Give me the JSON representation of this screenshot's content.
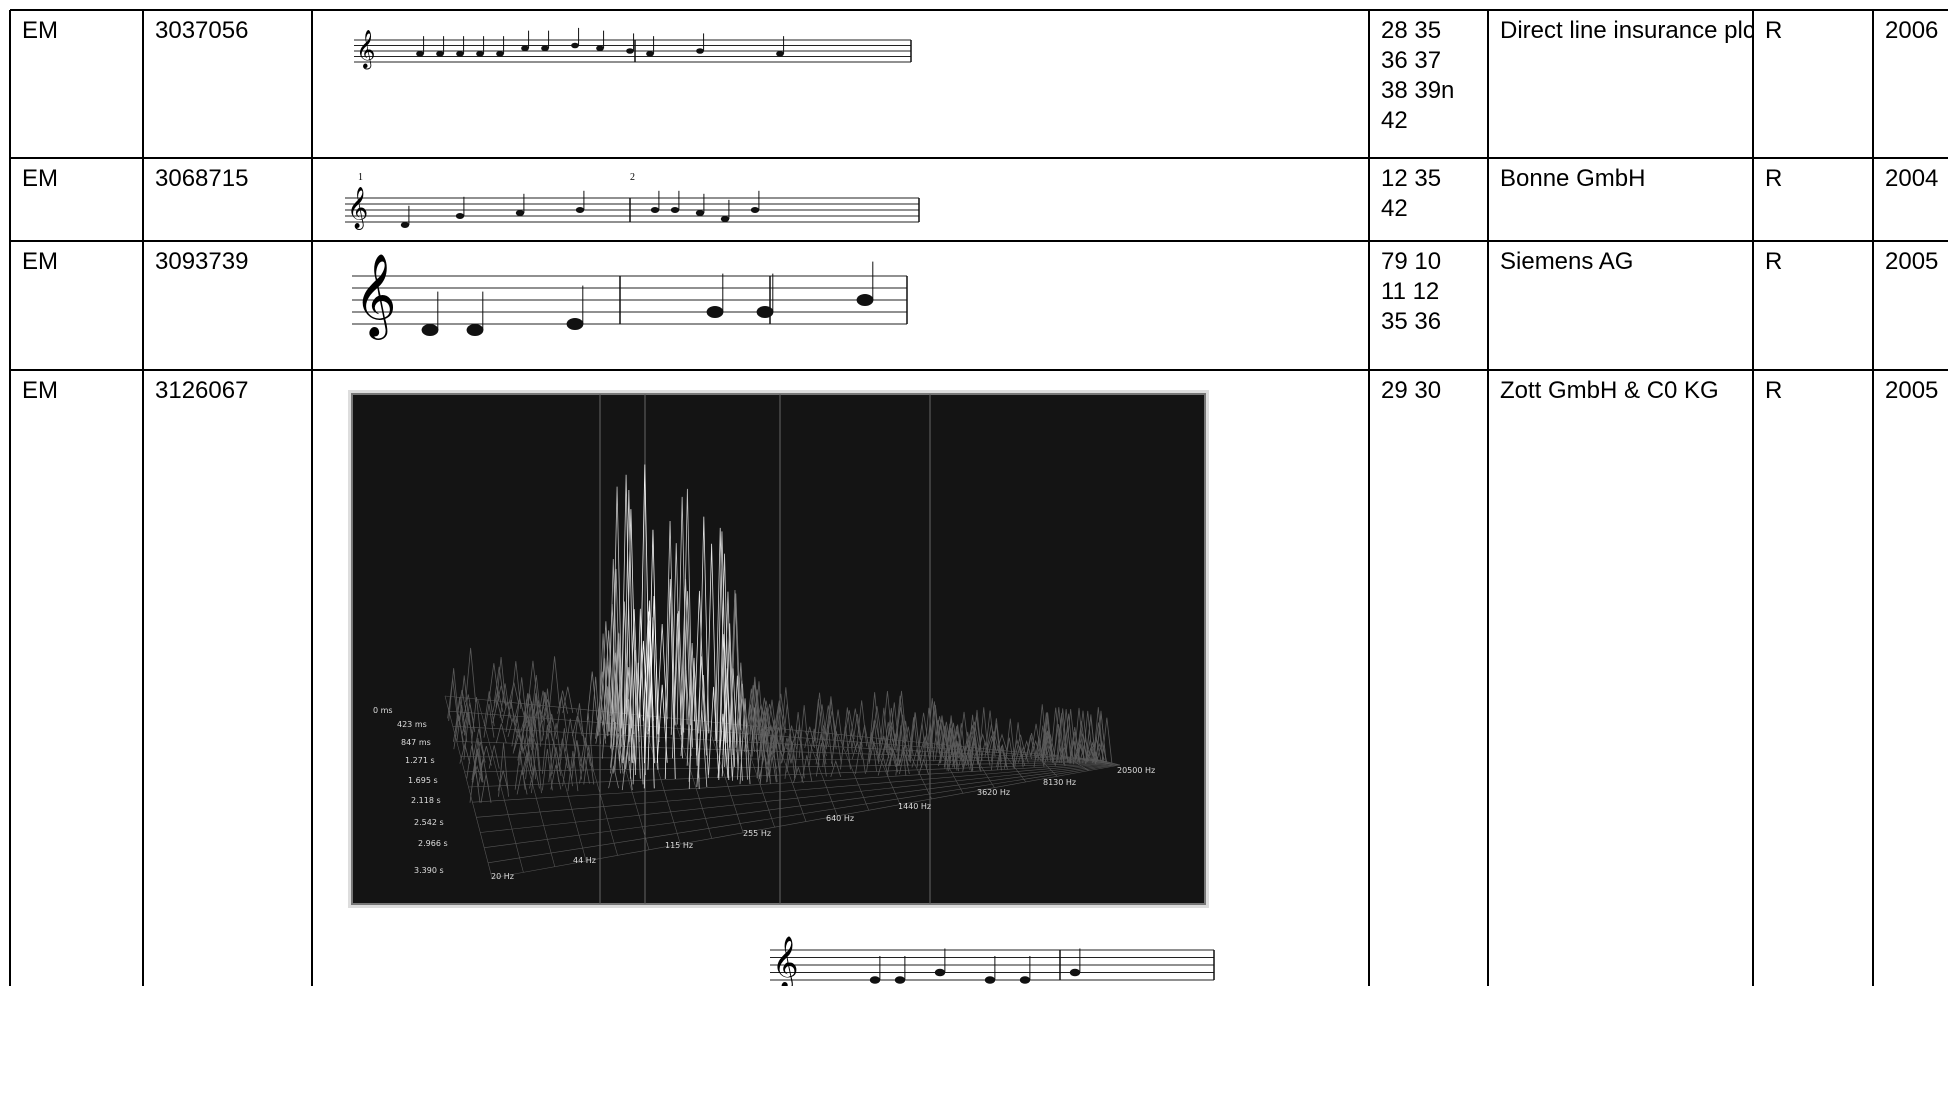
{
  "table": {
    "rows": [
      {
        "type": "EM",
        "number": "3037056",
        "classes": [
          "28 35",
          "36 37",
          "38 39n",
          "42"
        ],
        "owner": "Direct line insurance plc",
        "status": "R",
        "year": "2006"
      },
      {
        "type": "EM",
        "number": "3068715",
        "measure_numbers": [
          "1",
          "2"
        ],
        "classes": [
          "12 35",
          "42"
        ],
        "owner": "Bonne GmbH",
        "status": "R",
        "year": "2004"
      },
      {
        "type": "EM",
        "number": "3093739",
        "classes": [
          "79 10",
          "11 12",
          "35 36"
        ],
        "owner": "Siemens AG",
        "status": "R",
        "year": "2005"
      },
      {
        "type": "EM",
        "number": "3126067",
        "spectrogram": {
          "time_labels": [
            "0 ms",
            "423 ms",
            "847 ms",
            "1.271 s",
            "1.695 s",
            "2.118 s",
            "2.542 s",
            "2.966 s",
            "3.390 s"
          ],
          "freq_labels": [
            "20 Hz",
            "44 Hz",
            "115 Hz",
            "255 Hz",
            "640 Hz",
            "1440 Hz",
            "3620 Hz",
            "8130 Hz",
            "20500 Hz"
          ]
        },
        "classes": [
          "29 30"
        ],
        "owner": "Zott GmbH & C0 KG",
        "status": "R",
        "year": "2005"
      }
    ]
  }
}
